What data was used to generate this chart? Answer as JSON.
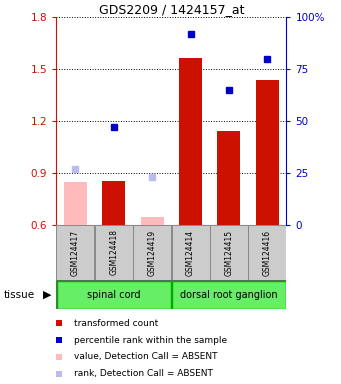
{
  "title": "GDS2209 / 1424157_at",
  "samples": [
    "GSM124417",
    "GSM124418",
    "GSM124419",
    "GSM124414",
    "GSM124415",
    "GSM124416"
  ],
  "bar_values": [
    0.845,
    0.855,
    0.645,
    1.565,
    1.14,
    1.435
  ],
  "bar_absent": [
    true,
    false,
    true,
    false,
    false,
    false
  ],
  "rank_values": [
    27,
    47,
    23,
    92,
    65,
    80
  ],
  "rank_absent": [
    true,
    false,
    true,
    false,
    false,
    false
  ],
  "ylim_left": [
    0.6,
    1.8
  ],
  "ylim_right": [
    0,
    100
  ],
  "yticks_left": [
    0.6,
    0.9,
    1.2,
    1.5,
    1.8
  ],
  "yticks_right": [
    0,
    25,
    50,
    75,
    100
  ],
  "ytick_labels_right": [
    "0",
    "25",
    "50",
    "75",
    "100%"
  ],
  "color_bar_present": "#cc1100",
  "color_bar_absent": "#ffbbbb",
  "color_rank_present": "#0000cc",
  "color_rank_absent": "#bbbbee",
  "tissue_labels": [
    "spinal cord",
    "dorsal root ganglion"
  ],
  "tissue_color": "#66ee66",
  "tissue_edge_color": "#00aa00",
  "label_bg_color": "#cccccc",
  "xlabel_color": "#cc1100",
  "ylabel_right_color": "#0000cc",
  "legend_items": [
    {
      "label": "transformed count",
      "color": "#cc1100",
      "marker": "s"
    },
    {
      "label": "percentile rank within the sample",
      "color": "#0000cc",
      "marker": "s"
    },
    {
      "label": "value, Detection Call = ABSENT",
      "color": "#ffbbbb",
      "marker": "s"
    },
    {
      "label": "rank, Detection Call = ABSENT",
      "color": "#bbbbee",
      "marker": "s"
    }
  ]
}
